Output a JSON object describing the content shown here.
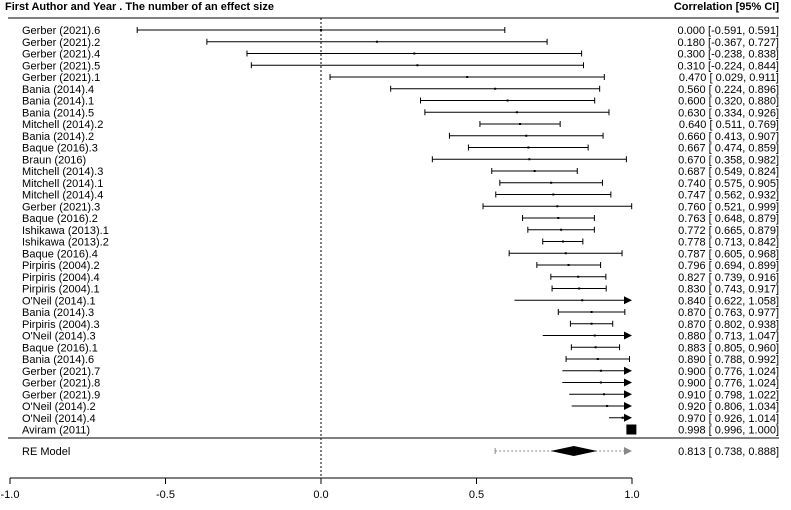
{
  "chart_data": {
    "type": "forest",
    "header_left": "First Author and Year . The number of an effect size",
    "header_right": "Correlation [95% CI]",
    "xlim": [
      -1.0,
      1.0
    ],
    "ticks": [
      {
        "value": -1.0,
        "label": "-1.0"
      },
      {
        "value": -0.5,
        "label": "-0.5"
      },
      {
        "value": 0.0,
        "label": "0.0"
      },
      {
        "value": 0.5,
        "label": "0.5"
      },
      {
        "value": 1.0,
        "label": "1.0"
      }
    ],
    "reference_line": 0.0,
    "studies": [
      {
        "label": "Gerber (2021).6",
        "est": 0.0,
        "lo": -0.591,
        "hi": 0.591,
        "text": "0.000 [-0.591, 0.591]"
      },
      {
        "label": "Gerber (2021).2",
        "est": 0.18,
        "lo": -0.367,
        "hi": 0.727,
        "text": "0.180 [-0.367, 0.727]"
      },
      {
        "label": "Gerber (2021).4",
        "est": 0.3,
        "lo": -0.238,
        "hi": 0.838,
        "text": "0.300 [-0.238, 0.838]"
      },
      {
        "label": "Gerber (2021).5",
        "est": 0.31,
        "lo": -0.224,
        "hi": 0.844,
        "text": "0.310 [-0.224, 0.844]"
      },
      {
        "label": "Gerber (2021).1",
        "est": 0.47,
        "lo": 0.029,
        "hi": 0.911,
        "text": "0.470 [ 0.029, 0.911]"
      },
      {
        "label": "Bania (2014).4",
        "est": 0.56,
        "lo": 0.224,
        "hi": 0.896,
        "text": "0.560 [ 0.224, 0.896]"
      },
      {
        "label": "Bania (2014).1",
        "est": 0.6,
        "lo": 0.32,
        "hi": 0.88,
        "text": "0.600 [ 0.320, 0.880]"
      },
      {
        "label": "Bania (2014).5",
        "est": 0.63,
        "lo": 0.334,
        "hi": 0.926,
        "text": "0.630 [ 0.334, 0.926]"
      },
      {
        "label": "Mitchell (2014).2",
        "est": 0.64,
        "lo": 0.511,
        "hi": 0.769,
        "text": "0.640 [ 0.511, 0.769]"
      },
      {
        "label": "Bania (2014).2",
        "est": 0.66,
        "lo": 0.413,
        "hi": 0.907,
        "text": "0.660 [ 0.413, 0.907]"
      },
      {
        "label": "Baque (2016).3",
        "est": 0.667,
        "lo": 0.474,
        "hi": 0.859,
        "text": "0.667 [ 0.474, 0.859]"
      },
      {
        "label": "Braun (2016)",
        "est": 0.67,
        "lo": 0.358,
        "hi": 0.982,
        "text": "0.670 [ 0.358, 0.982]"
      },
      {
        "label": "Mitchell (2014).3",
        "est": 0.687,
        "lo": 0.549,
        "hi": 0.824,
        "text": "0.687 [ 0.549, 0.824]"
      },
      {
        "label": "Mitchell (2014).1",
        "est": 0.74,
        "lo": 0.575,
        "hi": 0.905,
        "text": "0.740 [ 0.575, 0.905]"
      },
      {
        "label": "Mitchell (2014).4",
        "est": 0.747,
        "lo": 0.562,
        "hi": 0.932,
        "text": "0.747 [ 0.562, 0.932]"
      },
      {
        "label": "Gerber (2021).3",
        "est": 0.76,
        "lo": 0.521,
        "hi": 0.999,
        "text": "0.760 [ 0.521, 0.999]"
      },
      {
        "label": "Baque (2016).2",
        "est": 0.763,
        "lo": 0.648,
        "hi": 0.879,
        "text": "0.763 [ 0.648, 0.879]"
      },
      {
        "label": "Ishikawa (2013).1",
        "est": 0.772,
        "lo": 0.665,
        "hi": 0.879,
        "text": "0.772 [ 0.665, 0.879]"
      },
      {
        "label": "Ishikawa (2013).2",
        "est": 0.778,
        "lo": 0.713,
        "hi": 0.842,
        "text": "0.778 [ 0.713, 0.842]"
      },
      {
        "label": "Baque (2016).4",
        "est": 0.787,
        "lo": 0.605,
        "hi": 0.968,
        "text": "0.787 [ 0.605, 0.968]"
      },
      {
        "label": "Pirpiris (2004).2",
        "est": 0.796,
        "lo": 0.694,
        "hi": 0.899,
        "text": "0.796 [ 0.694, 0.899]"
      },
      {
        "label": "Pirpiris (2004).4",
        "est": 0.827,
        "lo": 0.739,
        "hi": 0.916,
        "text": "0.827 [ 0.739, 0.916]"
      },
      {
        "label": "Pirpiris (2004).1",
        "est": 0.83,
        "lo": 0.743,
        "hi": 0.917,
        "text": "0.830 [ 0.743, 0.917]"
      },
      {
        "label": "O'Neil (2014).1",
        "est": 0.84,
        "lo": 0.622,
        "hi": 1.058,
        "text": "0.840 [ 0.622, 1.058]"
      },
      {
        "label": "Bania (2014).3",
        "est": 0.87,
        "lo": 0.763,
        "hi": 0.977,
        "text": "0.870 [ 0.763, 0.977]"
      },
      {
        "label": "Pirpiris (2004).3",
        "est": 0.87,
        "lo": 0.802,
        "hi": 0.938,
        "text": "0.870 [ 0.802, 0.938]"
      },
      {
        "label": "O'Neil (2014).3",
        "est": 0.88,
        "lo": 0.713,
        "hi": 1.047,
        "text": "0.880 [ 0.713, 1.047]"
      },
      {
        "label": "Baque (2016).1",
        "est": 0.883,
        "lo": 0.805,
        "hi": 0.96,
        "text": "0.883 [ 0.805, 0.960]"
      },
      {
        "label": "Bania (2014).6",
        "est": 0.89,
        "lo": 0.788,
        "hi": 0.992,
        "text": "0.890 [ 0.788, 0.992]"
      },
      {
        "label": "Gerber (2021).7",
        "est": 0.9,
        "lo": 0.776,
        "hi": 1.024,
        "text": "0.900 [ 0.776, 1.024]"
      },
      {
        "label": "Gerber (2021).8",
        "est": 0.9,
        "lo": 0.776,
        "hi": 1.024,
        "text": "0.900 [ 0.776, 1.024]"
      },
      {
        "label": "Gerber (2021).9",
        "est": 0.91,
        "lo": 0.798,
        "hi": 1.022,
        "text": "0.910 [ 0.798, 1.022]"
      },
      {
        "label": "O'Neil (2014).2",
        "est": 0.92,
        "lo": 0.806,
        "hi": 1.034,
        "text": "0.920 [ 0.806, 1.034]"
      },
      {
        "label": "O'Neil (2014).4",
        "est": 0.97,
        "lo": 0.926,
        "hi": 1.014,
        "text": "0.970 [ 0.926, 1.014]"
      },
      {
        "label": "Aviram (2011)",
        "est": 0.998,
        "lo": 0.996,
        "hi": 1.0,
        "text": "0.998 [ 0.996, 1.000]"
      }
    ],
    "summary": {
      "label": "RE Model",
      "est": 0.813,
      "lo": 0.738,
      "hi": 0.888,
      "pi_lo": 0.56,
      "pi_hi": 1.0,
      "text": "0.813 [ 0.738, 0.888]"
    },
    "colors": {
      "line": "#000000",
      "prediction_interval": "#888888"
    }
  }
}
